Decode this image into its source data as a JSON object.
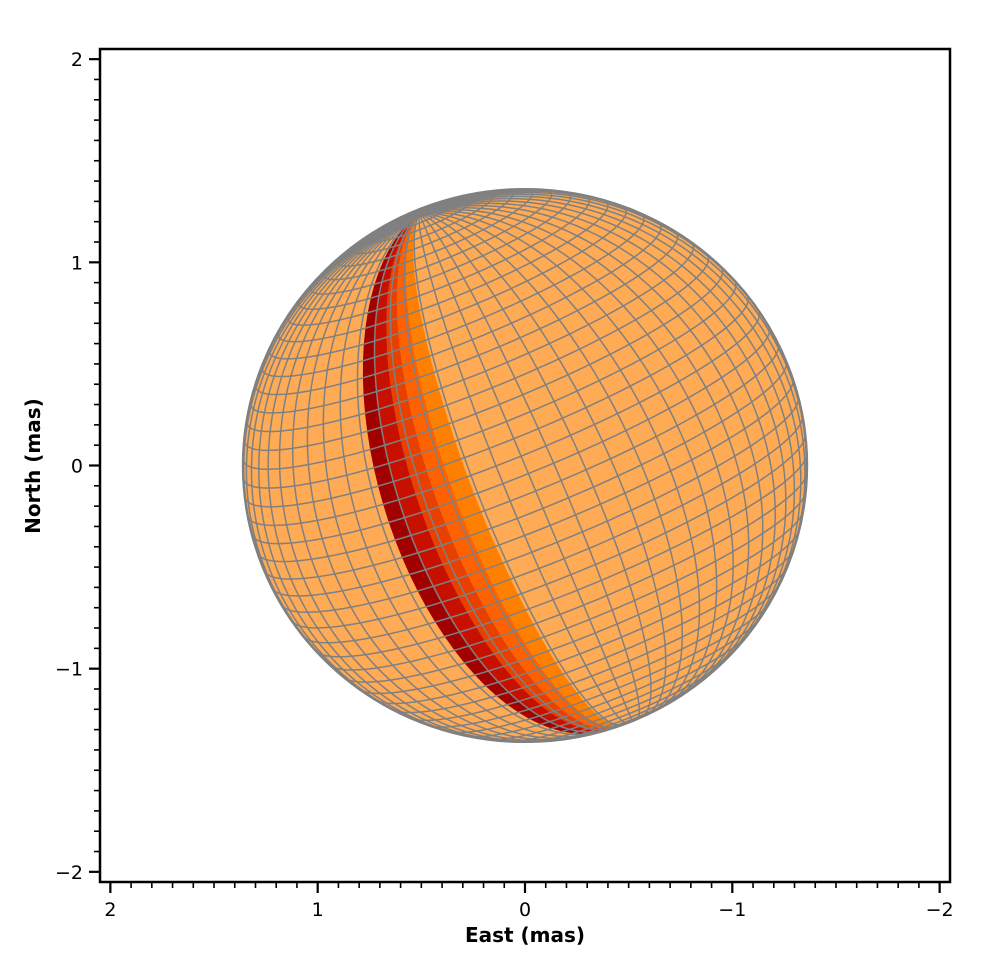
{
  "chart_data": {
    "type": "scatter",
    "subtype": "stellar-surface-projection",
    "title": "",
    "xlabel": "East (mas)",
    "ylabel": "North (mas)",
    "xlim": [
      2.05,
      -2.05
    ],
    "ylim": [
      -2.05,
      2.05
    ],
    "x_ticks": [
      {
        "value": 2,
        "label": "2"
      },
      {
        "value": 1,
        "label": "1"
      },
      {
        "value": 0,
        "label": "0"
      },
      {
        "value": -1,
        "label": "−1"
      },
      {
        "value": -2,
        "label": "−2"
      }
    ],
    "y_ticks": [
      {
        "value": 2,
        "label": "2"
      },
      {
        "value": 1,
        "label": "1"
      },
      {
        "value": 0,
        "label": "0"
      },
      {
        "value": -1,
        "label": "−1"
      },
      {
        "value": -2,
        "label": "−2"
      }
    ],
    "minor_tick_step": 0.1,
    "grid": false,
    "star": {
      "radius_mas": 1.36,
      "center_mas": [
        0,
        0
      ],
      "pole_north_mas": [
        0.51,
        1.24
      ],
      "pole_south_mas": [
        -0.7,
        -1.13
      ],
      "latitude_rings": 46,
      "longitude_lines": 64,
      "surface_color": "#ffaa55",
      "grid_color": "#808080"
    },
    "spot_band": {
      "longitude_start_deg": 12,
      "longitude_end_deg": 32,
      "colors": [
        "#ff8000",
        "#ff6000",
        "#e84000",
        "#c81000",
        "#a00000"
      ]
    }
  }
}
